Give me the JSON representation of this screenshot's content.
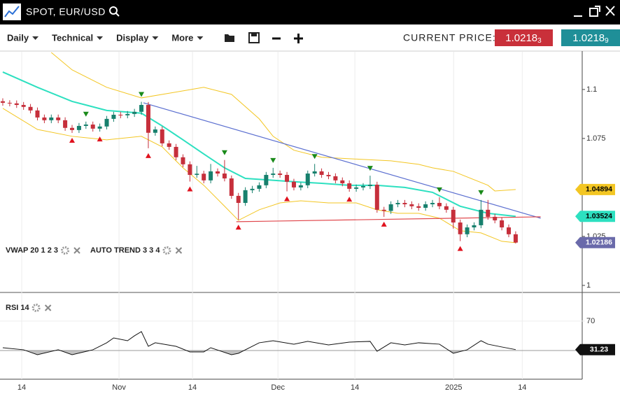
{
  "header": {
    "title": "SPOT, EUR/USD"
  },
  "toolbar": {
    "menus": [
      "Daily",
      "Technical",
      "Display",
      "More"
    ],
    "current_price_label": "CURRENT PRICE:",
    "bid": {
      "price": "1.0218",
      "pip": "3"
    },
    "ask": {
      "price": "1.0218",
      "pip": "9"
    }
  },
  "chart_data": {
    "type": "candlestick",
    "indicators": [
      "VWAP 20 1 2 3",
      "AUTO TREND 3 3 4"
    ],
    "up_color": "#17806d",
    "down_color": "#c62f3b",
    "xlim": [
      -0.4,
      83.6
    ],
    "xticks": [
      {
        "value": 2.73,
        "label": "14"
      },
      {
        "value": 16.77,
        "label": "Nov"
      },
      {
        "value": 27.37,
        "label": "14"
      },
      {
        "value": 39.7,
        "label": "Dec"
      },
      {
        "value": 50.8,
        "label": "14"
      },
      {
        "value": 65.05,
        "label": "2025"
      },
      {
        "value": 74.95,
        "label": "14"
      }
    ],
    "ylim": [
      0.9964,
      1.1196
    ],
    "yticks": [
      1.1,
      1.075,
      1.025,
      1
    ],
    "open": [
      1.094,
      1.0932,
      1.0929,
      1.0921,
      1.0911,
      1.0893,
      1.0857,
      1.0843,
      1.0857,
      1.0843,
      1.0804,
      1.0793,
      1.0814,
      1.0821,
      1.08,
      1.0811,
      1.085,
      1.0871,
      1.0868,
      1.0875,
      1.0886,
      1.0921,
      1.0779,
      1.0796,
      1.0725,
      1.0707,
      1.0654,
      1.0618,
      1.0564,
      1.057,
      1.0536,
      1.0582,
      1.0571,
      1.0546,
      1.0457,
      1.0421,
      1.0486,
      1.0493,
      1.0511,
      1.0564,
      1.0571,
      1.0564,
      1.0529,
      1.05,
      1.0511,
      1.0571,
      1.0582,
      1.0564,
      1.0557,
      1.0536,
      1.0521,
      1.0493,
      1.05,
      1.0507,
      1.0514,
      1.0386,
      1.038,
      1.0414,
      1.0421,
      1.0414,
      1.0404,
      1.0396,
      1.0414,
      1.0421,
      1.0404,
      1.0386,
      1.0321,
      1.0261,
      1.0296,
      1.0307,
      1.0386,
      1.035,
      1.0332,
      1.0296,
      1.0261
    ],
    "high": [
      1.0955,
      1.0945,
      1.0944,
      1.0936,
      1.0926,
      1.0908,
      1.0872,
      1.0872,
      1.0872,
      1.0858,
      1.0819,
      1.0829,
      1.0836,
      1.0836,
      1.0826,
      1.0865,
      1.0886,
      1.0886,
      1.089,
      1.0901,
      1.0937,
      1.0936,
      1.0811,
      1.0811,
      1.074,
      1.0722,
      1.0669,
      1.0633,
      1.061,
      1.0585,
      1.062,
      1.0597,
      1.064,
      1.0561,
      1.0472,
      1.0501,
      1.0508,
      1.0526,
      1.0579,
      1.06,
      1.0586,
      1.0579,
      1.0544,
      1.0526,
      1.0586,
      1.062,
      1.0597,
      1.0579,
      1.0572,
      1.0551,
      1.0536,
      1.0515,
      1.0522,
      1.056,
      1.0529,
      1.0401,
      1.0429,
      1.0436,
      1.0436,
      1.0429,
      1.0419,
      1.0429,
      1.0436,
      1.045,
      1.0419,
      1.0401,
      1.0336,
      1.0311,
      1.0322,
      1.0436,
      1.0436,
      1.0365,
      1.0347,
      1.0311,
      1.0276
    ],
    "low": [
      1.0917,
      1.0914,
      1.0906,
      1.0896,
      1.0878,
      1.0842,
      1.0828,
      1.0828,
      1.0828,
      1.0789,
      1.0778,
      1.0778,
      1.0799,
      1.0785,
      1.0785,
      1.0796,
      1.0835,
      1.0853,
      1.0853,
      1.086,
      1.0871,
      1.07,
      1.0764,
      1.071,
      1.0692,
      1.0639,
      1.0603,
      1.053,
      1.0549,
      1.0521,
      1.0521,
      1.0556,
      1.0531,
      1.0442,
      1.0335,
      1.0406,
      1.0471,
      1.0478,
      1.0496,
      1.0549,
      1.0549,
      1.048,
      1.0485,
      1.0485,
      1.0496,
      1.0556,
      1.0549,
      1.0542,
      1.0521,
      1.0506,
      1.0478,
      1.0478,
      1.0485,
      1.0492,
      1.0371,
      1.035,
      1.0365,
      1.0399,
      1.0399,
      1.0389,
      1.0381,
      1.0381,
      1.0399,
      1.0389,
      1.0371,
      1.029,
      1.0226,
      1.0246,
      1.0281,
      1.0292,
      1.0335,
      1.0317,
      1.0281,
      1.0246,
      1.0214
    ],
    "close": [
      1.0932,
      1.0929,
      1.0921,
      1.0911,
      1.0893,
      1.0857,
      1.0843,
      1.0857,
      1.0843,
      1.0804,
      1.0793,
      1.0814,
      1.0821,
      1.08,
      1.0811,
      1.085,
      1.0871,
      1.0868,
      1.0875,
      1.0886,
      1.0921,
      1.0779,
      1.0796,
      1.0725,
      1.0707,
      1.0654,
      1.0618,
      1.0564,
      1.057,
      1.0536,
      1.0582,
      1.0571,
      1.0546,
      1.0457,
      1.0421,
      1.0486,
      1.0493,
      1.0511,
      1.0564,
      1.0571,
      1.0564,
      1.0529,
      1.05,
      1.0511,
      1.0571,
      1.0582,
      1.0564,
      1.0557,
      1.0536,
      1.0521,
      1.0493,
      1.05,
      1.0507,
      1.0514,
      1.0386,
      1.038,
      1.0414,
      1.0421,
      1.0414,
      1.0404,
      1.0396,
      1.0414,
      1.0421,
      1.0404,
      1.0386,
      1.0321,
      1.0261,
      1.0296,
      1.0307,
      1.0386,
      1.035,
      1.0332,
      1.0296,
      1.0261,
      1.02186
    ],
    "upper_band": {
      "color": "#f3c623",
      "badge_text": "#000000",
      "x": [
        7,
        10,
        15,
        20,
        26,
        29,
        33,
        37,
        39,
        42,
        46,
        52,
        56,
        60,
        62,
        65,
        70,
        71,
        74
      ],
      "values": [
        1.1189,
        1.11,
        1.1011,
        1.0957,
        1.0993,
        1.1011,
        1.0975,
        1.085,
        1.0761,
        1.069,
        1.0654,
        1.0643,
        1.0636,
        1.0618,
        1.06,
        1.0582,
        1.0511,
        1.0482,
        1.04894
      ]
    },
    "lower_band": {
      "color": "#f3c623",
      "x": [
        0,
        5,
        10,
        15,
        20,
        23,
        26,
        29,
        32,
        34,
        37,
        40,
        43,
        47,
        51,
        54,
        57,
        60,
        63,
        66,
        69,
        72,
        74
      ],
      "values": [
        1.0904,
        1.0796,
        1.0761,
        1.0743,
        1.0761,
        1.0707,
        1.06,
        1.0511,
        1.0404,
        1.0332,
        1.0386,
        1.0421,
        1.0432,
        1.0421,
        1.0421,
        1.0386,
        1.0368,
        1.0368,
        1.0343,
        1.0279,
        1.0268,
        1.0225,
        1.0218
      ]
    },
    "vwap": {
      "color": "#2de0c0",
      "badge_text": "#000000",
      "x": [
        0,
        5,
        10,
        15,
        20,
        23,
        26,
        29,
        32,
        35,
        38,
        42,
        46,
        50,
        54,
        58,
        62,
        66,
        70,
        74
      ],
      "values": [
        1.1089,
        1.1011,
        1.0939,
        1.0893,
        1.0879,
        1.0814,
        1.0743,
        1.0671,
        1.06,
        1.0546,
        1.0539,
        1.0529,
        1.0521,
        1.0511,
        1.0511,
        1.05,
        1.0475,
        1.0404,
        1.0368,
        1.03524
      ]
    },
    "price_badge": {
      "color": "#6a6aaa",
      "text": "#ffffff"
    },
    "trendlines": [
      {
        "color": "#5b6fd0",
        "x": [
          20.3,
          77.6
        ],
        "values": [
          1.0932,
          1.0343
        ]
      },
      {
        "color": "#e0474c",
        "x": [
          33.7,
          77.6
        ],
        "values": [
          1.0325,
          1.035
        ]
      }
    ],
    "buy_signals": [
      10,
      14,
      21,
      27,
      34,
      41,
      50,
      55,
      66
    ],
    "buy_color": "#e0121e",
    "sell_signals": [
      12,
      20,
      32,
      39,
      45,
      53,
      63,
      69
    ],
    "sell_color": "#1a8a1a",
    "rsi": {
      "label": "RSI 14",
      "color": "#111111",
      "ylim": [
        -9,
        107
      ],
      "yticks": [
        70
      ],
      "level": 30,
      "x": [
        0,
        3,
        5,
        8,
        10,
        13,
        15,
        16,
        18,
        19,
        20,
        21,
        22,
        25,
        27,
        29,
        30,
        33,
        34,
        37,
        39,
        42,
        44,
        47,
        50,
        53,
        54,
        56,
        58,
        60,
        63,
        65,
        67,
        69,
        70,
        72,
        74
      ],
      "values": [
        33.8,
        31,
        24.3,
        31,
        24.3,
        31,
        40.5,
        47.1,
        43.3,
        50,
        55.7,
        35.7,
        40.5,
        35.7,
        28.1,
        28.1,
        33.8,
        24.3,
        26.2,
        40.5,
        43.3,
        38.6,
        42.4,
        37.6,
        41.4,
        42.4,
        29,
        40.5,
        37.6,
        40.5,
        38.6,
        26.2,
        31,
        43.3,
        38.6,
        34.8,
        31.23
      ]
    }
  }
}
